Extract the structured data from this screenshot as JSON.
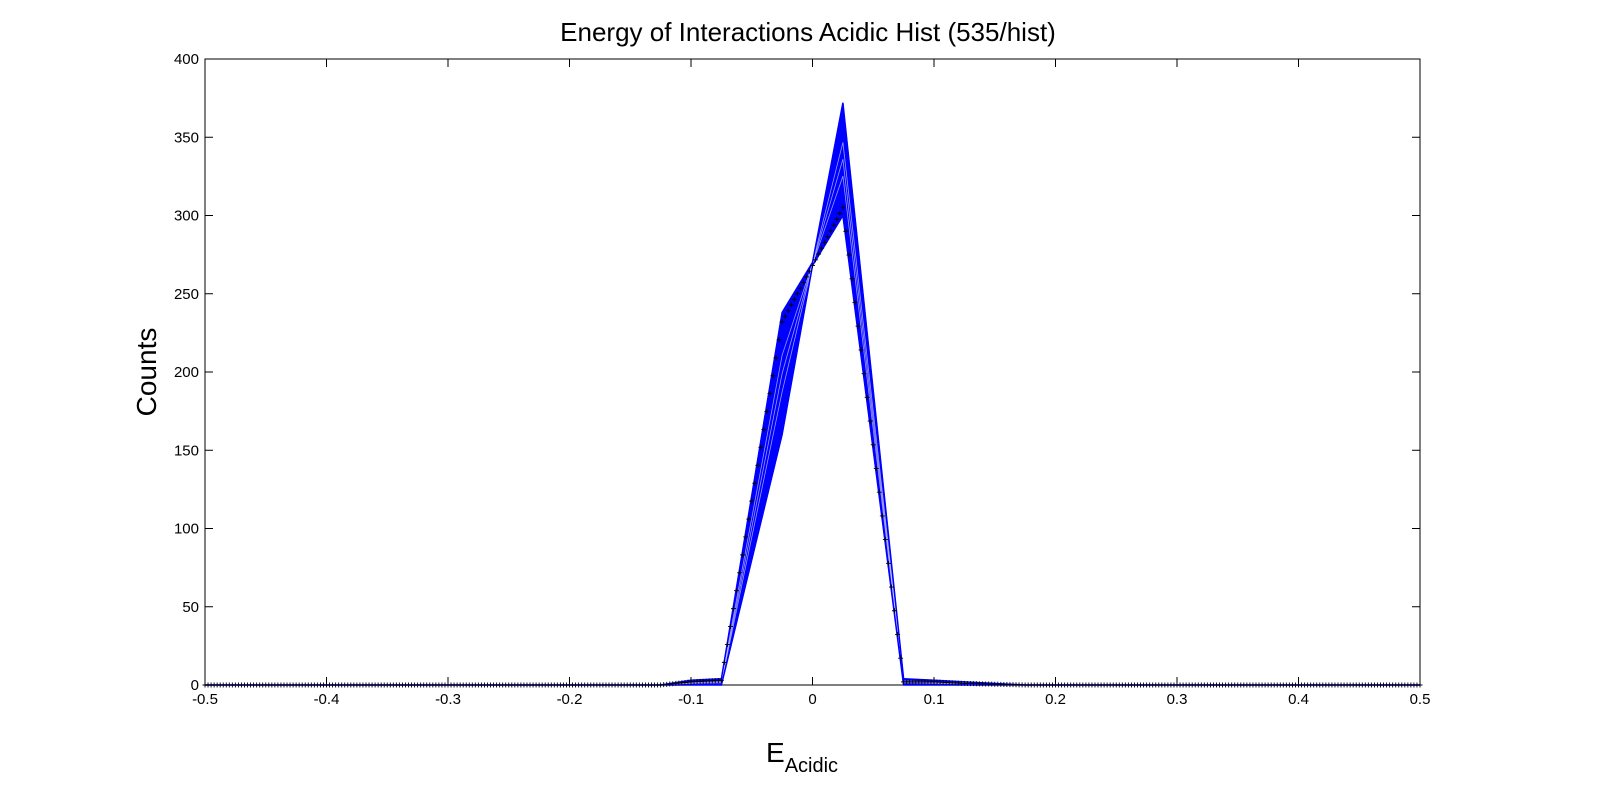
{
  "chart_data": {
    "type": "line",
    "title": "Energy of Interactions Acidic Hist (535/hist)",
    "xlabel_main": "E",
    "xlabel_sub": "Acidic",
    "ylabel": "Counts",
    "xlim": [
      -0.5,
      0.5
    ],
    "ylim": [
      0,
      400
    ],
    "xticks": [
      "-0.5",
      "-0.4",
      "-0.3",
      "-0.2",
      "-0.1",
      "0",
      "0.1",
      "0.2",
      "0.3",
      "0.4",
      "0.5"
    ],
    "yticks": [
      "0",
      "50",
      "100",
      "150",
      "200",
      "250",
      "300",
      "350",
      "400"
    ],
    "grid": false,
    "series_count": 535,
    "line_color": "#0000ff",
    "marker_color": "#000000",
    "bin_edges_x": [
      -0.5,
      -0.125,
      -0.1,
      -0.075,
      -0.025,
      0.0,
      0.025,
      0.075,
      0.1,
      0.125,
      0.175,
      0.5
    ],
    "envelope_low": [
      0,
      0,
      0,
      0,
      160,
      268,
      300,
      0,
      0,
      0,
      0,
      0
    ],
    "envelope_high": [
      0,
      0,
      3,
      4,
      238,
      270,
      372,
      4,
      3,
      2,
      0,
      0
    ],
    "marker_curve": [
      0,
      0,
      2,
      3,
      232,
      268,
      305,
      2,
      2,
      1,
      0,
      0
    ]
  }
}
